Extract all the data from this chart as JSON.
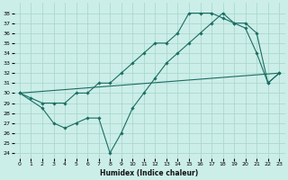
{
  "xlabel": "Humidex (Indice chaleur)",
  "bg_color": "#cceee8",
  "grid_color": "#aad8d0",
  "line_color": "#1a6e62",
  "xlim": [
    -0.5,
    23.5
  ],
  "ylim": [
    23.5,
    39.0
  ],
  "xticks": [
    0,
    1,
    2,
    3,
    4,
    5,
    6,
    7,
    8,
    9,
    10,
    11,
    12,
    13,
    14,
    15,
    16,
    17,
    18,
    19,
    20,
    21,
    22,
    23
  ],
  "yticks": [
    24,
    25,
    26,
    27,
    28,
    29,
    30,
    31,
    32,
    33,
    34,
    35,
    36,
    37,
    38
  ],
  "line1_x": [
    0,
    1,
    2,
    3,
    4,
    5,
    6,
    7,
    8,
    9,
    10,
    11,
    12,
    13,
    14,
    15,
    16,
    17,
    18,
    19,
    20,
    21,
    22,
    23
  ],
  "line1_y": [
    30,
    29.5,
    29,
    29,
    29,
    30,
    30,
    31,
    31,
    32,
    33,
    34,
    35,
    35,
    36,
    38,
    38,
    38,
    37.5,
    37,
    37,
    36,
    31,
    32
  ],
  "line2_x": [
    0,
    2,
    3,
    4,
    5,
    6,
    7,
    8,
    9,
    10,
    11,
    12,
    13,
    14,
    15,
    16,
    17,
    18,
    19,
    20,
    21,
    22,
    23
  ],
  "line2_y": [
    30,
    28.5,
    27,
    26.5,
    27,
    27.5,
    27.5,
    24,
    26,
    28.5,
    30,
    31.5,
    33,
    34,
    35,
    36,
    37,
    38,
    37,
    36.5,
    34,
    31,
    32
  ],
  "line3_x": [
    0,
    23
  ],
  "line3_y": [
    30,
    32
  ]
}
